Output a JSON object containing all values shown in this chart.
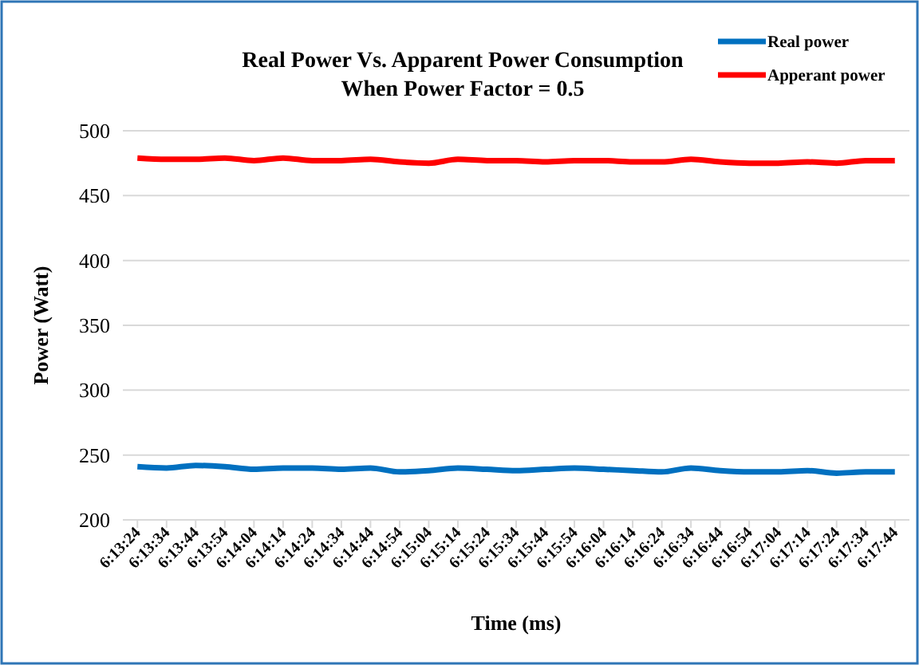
{
  "chart_data": {
    "type": "line",
    "title": "Real Power Vs. Apparent  Power Consumption",
    "subtitle": "When Power Factor = 0.5",
    "xlabel": "Time (ms)",
    "ylabel": "Power (Watt)",
    "categories": [
      "6:13:24",
      "6:13:34",
      "6:13:44",
      "6:13:54",
      "6:14:04",
      "6:14:14",
      "6:14:24",
      "6:14:34",
      "6:14:44",
      "6:14:54",
      "6:15:04",
      "6:15:14",
      "6:15:24",
      "6:15:34",
      "6:15:44",
      "6:15:54",
      "6:16:04",
      "6:16:14",
      "6:16:24",
      "6:16:34",
      "6:16:44",
      "6:16:54",
      "6:17:04",
      "6:17:14",
      "6:17:24",
      "6:17:34",
      "6:17:44"
    ],
    "series": [
      {
        "name": "Real power",
        "color": "#0070c0",
        "values": [
          241,
          240,
          242,
          241,
          239,
          240,
          240,
          239,
          240,
          237,
          238,
          240,
          239,
          238,
          239,
          240,
          239,
          238,
          237,
          240,
          238,
          237,
          237,
          238,
          236,
          237,
          237
        ]
      },
      {
        "name": "Apperant power",
        "color": "#ff0000",
        "values": [
          479,
          478,
          478,
          479,
          477,
          479,
          477,
          477,
          478,
          476,
          475,
          478,
          477,
          477,
          476,
          477,
          477,
          476,
          476,
          478,
          476,
          475,
          475,
          476,
          475,
          477,
          477
        ]
      }
    ],
    "ylim": [
      200,
      500
    ],
    "yticks": [
      200,
      250,
      300,
      350,
      400,
      450,
      500
    ],
    "grid": "y",
    "legend": "top right"
  }
}
